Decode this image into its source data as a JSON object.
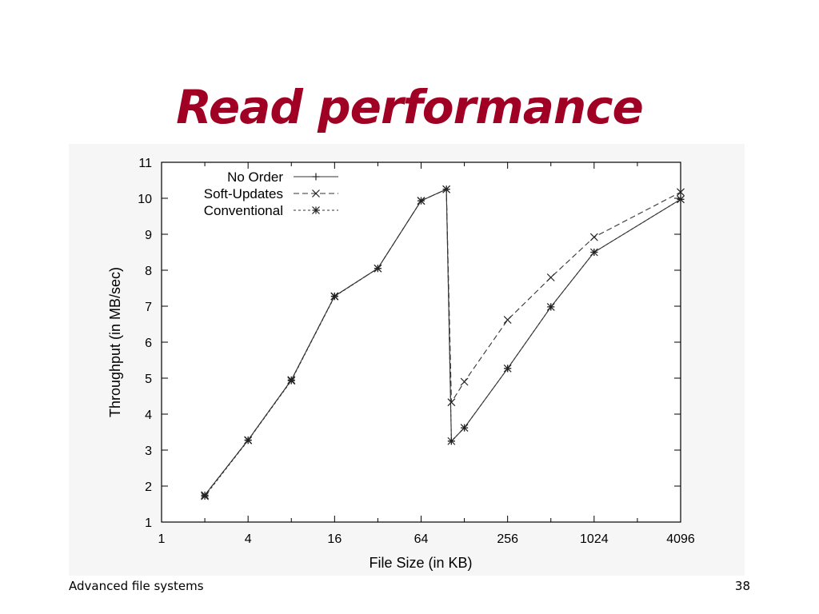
{
  "slide": {
    "title": "Read performance",
    "footer_left": "Advanced file systems",
    "page_number": "38"
  },
  "chart_data": {
    "type": "line",
    "xlabel": "File Size (in KB)",
    "ylabel": "Throughput (in MB/sec)",
    "x_scale": "log2",
    "xlim": [
      1,
      4096
    ],
    "ylim": [
      1,
      11
    ],
    "x_ticks": [
      1,
      4,
      16,
      64,
      256,
      1024,
      4096
    ],
    "x_tick_labels": [
      "1",
      "4",
      "16",
      "64",
      "256",
      "1024",
      "4096"
    ],
    "y_ticks": [
      1,
      2,
      3,
      4,
      5,
      6,
      7,
      8,
      9,
      10,
      11
    ],
    "y_tick_labels": [
      "1",
      "2",
      "3",
      "4",
      "5",
      "6",
      "7",
      "8",
      "9",
      "10",
      "11"
    ],
    "legend_position": "top-left",
    "grid": false,
    "series": [
      {
        "name": "No Order",
        "marker": "plus",
        "dash": "solid",
        "x": [
          2,
          4,
          8,
          16,
          32,
          64,
          96,
          104,
          128,
          256,
          512,
          1024,
          4096
        ],
        "y": [
          1.75,
          3.28,
          4.95,
          7.28,
          8.05,
          9.93,
          10.25,
          3.25,
          3.62,
          5.27,
          6.98,
          8.5,
          9.97
        ]
      },
      {
        "name": "Soft-Updates",
        "marker": "x",
        "dash": "long",
        "x": [
          2,
          4,
          8,
          16,
          32,
          64,
          96,
          104,
          128,
          256,
          512,
          1024,
          4096
        ],
        "y": [
          1.75,
          3.28,
          4.95,
          7.28,
          8.05,
          9.93,
          10.25,
          4.33,
          4.9,
          6.62,
          7.8,
          8.92,
          10.17
        ]
      },
      {
        "name": "Conventional",
        "marker": "star",
        "dash": "short",
        "x": [
          2,
          4,
          8,
          16,
          32,
          64,
          96,
          104,
          128,
          256,
          512,
          1024,
          4096
        ],
        "y": [
          1.72,
          3.27,
          4.93,
          7.27,
          8.05,
          9.93,
          10.25,
          3.25,
          3.62,
          5.27,
          6.98,
          8.5,
          9.97
        ]
      }
    ]
  }
}
